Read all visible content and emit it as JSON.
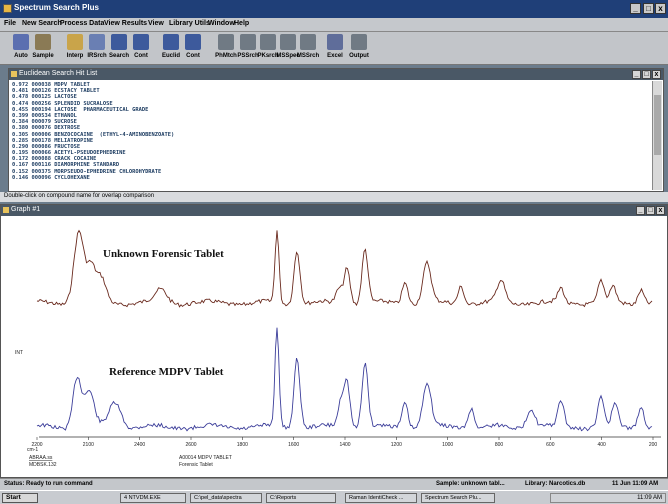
{
  "window": {
    "title": "Spectrum Search Plus"
  },
  "menu": [
    "File",
    "New Search",
    "Process Data",
    "View Results",
    "View",
    "Library Utils",
    "Window",
    "Help"
  ],
  "toolbar": [
    {
      "label": "Auto",
      "icon": "auto-search-icon",
      "color": "#5b6fb0"
    },
    {
      "label": "Sample",
      "icon": "sample-icon",
      "color": "#8a7a55"
    },
    {
      "label": "Interp",
      "icon": "interp-icon",
      "color": "#c9a44a"
    },
    {
      "label": "IRSrch",
      "icon": "ir-search-icon",
      "color": "#6a7fb3"
    },
    {
      "label": "Search",
      "icon": "search-icon",
      "color": "#3d5a9c"
    },
    {
      "label": "Cont",
      "icon": "continue-search-icon",
      "color": "#3d5a9c"
    },
    {
      "label": "Euclid",
      "icon": "euclid-search-icon",
      "color": "#3d5a9c"
    },
    {
      "label": "Cont",
      "icon": "continue-euclid-icon",
      "color": "#3d5a9c"
    },
    {
      "label": "PhMtch",
      "icon": "ph-match-icon",
      "color": "#707a84"
    },
    {
      "label": "PSSrch",
      "icon": "ps-search-icon",
      "color": "#707a84"
    },
    {
      "label": "PKsrch",
      "icon": "pk-search-icon",
      "color": "#707a84"
    },
    {
      "label": "MSSpec",
      "icon": "ms-spec-icon",
      "color": "#707a84"
    },
    {
      "label": "MSSrch",
      "icon": "ms-search-icon",
      "color": "#707a84"
    },
    {
      "label": "Excel",
      "icon": "excel-icon",
      "color": "#5f6d9a"
    },
    {
      "label": "Output",
      "icon": "output-icon",
      "color": "#707a84"
    }
  ],
  "hitlist": {
    "title": "Euclidean Search Hit List",
    "rows": [
      "0.972 000038 MDPV TABLET",
      "0.481 000126 ECSTACY TABLET",
      "0.478 000125 LACTOSE",
      "0.474 000256 SPLENDID SUCRALOSE",
      "0.455 000194 LACTOSE  PHARMACEUTICAL GRADE",
      "0.399 000534 ETHANOL",
      "0.384 000079 SUCROSE",
      "0.380 000076 DEXTROSE",
      "0.305 000006 BENZOCOCAINE  (ETHYL-4-AMINOBENZOATE)",
      "0.285 000178 MELIATROPINE",
      "0.290 000086 FRUCTOSE",
      "0.195 000066 ACETYL-PSEUDOEPHEDRINE",
      "0.172 000088 CRACK COCAINE",
      "0.167 000116 DIAMORPHINE STANDARD",
      "0.152 000375 MORPSEUDO-EPHEDRINE CHLOROHYDRATE",
      "0.146 000096 CYCLOHEXANE"
    ]
  },
  "hint": "Double-click on compound name for overlap comparison",
  "graph": {
    "title": "Graph #1",
    "y_label": "INT",
    "unknown_label": "Unknown Forensic Tablet",
    "reference_label": "Reference MDPV Tablet",
    "x_unit": "cm-1",
    "x_ticks": [
      "2200",
      "2100",
      "2400",
      "2600",
      "1800",
      "1600",
      "1400",
      "1200",
      "1000",
      "800",
      "600",
      "400",
      "200"
    ],
    "left_caption_1": "ABRAA.ss",
    "left_caption_2": "MDBSK.132",
    "mid_caption_1": "A00014 MDPV TABLET",
    "mid_caption_2": "Forensic Tablet",
    "color_unknown": "#6a2a1e",
    "color_reference": "#3c3e9a"
  },
  "status": {
    "left": "Status: Ready to run command",
    "sample": "Sample: unknown tabl...",
    "library": "Library: Narcotics.db",
    "date": "11 Jun 11:09 AM"
  },
  "taskbar": {
    "start": "Start",
    "tasks": [
      "4 NTVDM.EXE",
      "C:\\pel_data\\spectra",
      "C:\\Reports",
      "Raman IdentiCheck ...",
      "Spectrum Search Plu..."
    ],
    "clock": "11:09 AM"
  }
}
